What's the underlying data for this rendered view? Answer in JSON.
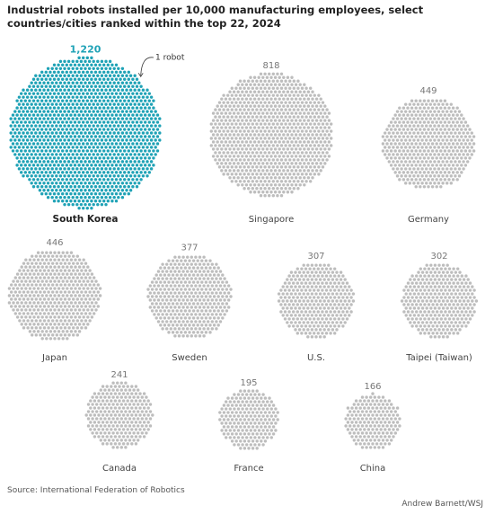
{
  "chart_data": {
    "type": "dot-cluster",
    "title": "Industrial robots installed per 10,000 manufacturing employees, select countries/cities ranked within the top 22, 2024",
    "categories": [
      "South Korea",
      "Singapore",
      "Germany",
      "Japan",
      "Sweden",
      "U.S.",
      "Taipei (Taiwan)",
      "Canada",
      "France",
      "China"
    ],
    "values": [
      1220,
      818,
      449,
      446,
      377,
      307,
      302,
      241,
      195,
      166
    ],
    "value_labels": [
      "1,220",
      "818",
      "449",
      "446",
      "377",
      "307",
      "302",
      "241",
      "195",
      "166"
    ],
    "colors": [
      "#1fa2b6",
      "#bdbdbd",
      "#bdbdbd",
      "#bdbdbd",
      "#bdbdbd",
      "#bdbdbd",
      "#bdbdbd",
      "#bdbdbd",
      "#bdbdbd",
      "#bdbdbd"
    ],
    "highlight": 0,
    "annotation": "1 robot",
    "source": "Source: International Federation of Robotics",
    "credit": "Andrew Barnett/WSJ"
  }
}
